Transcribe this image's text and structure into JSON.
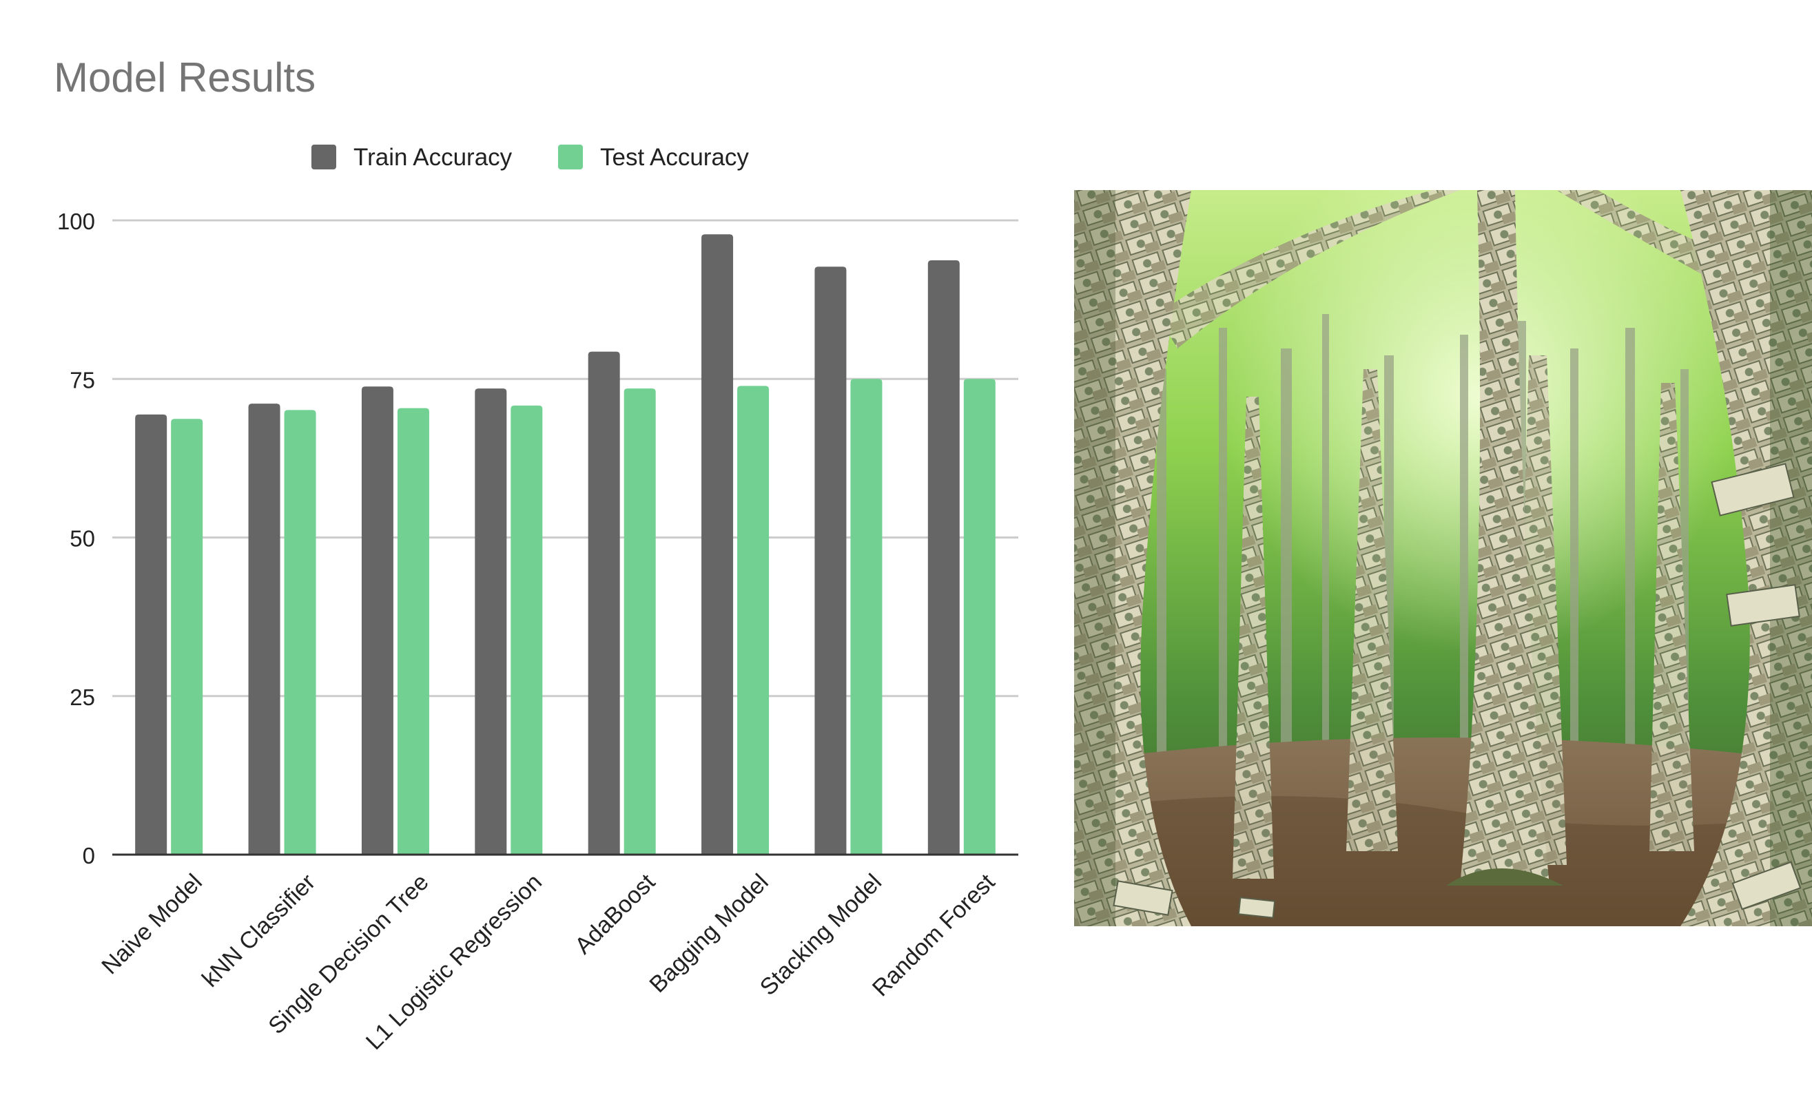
{
  "chart_data": {
    "type": "bar",
    "title": "Model Results",
    "xlabel": "",
    "ylabel": "",
    "ylim": [
      0,
      100
    ],
    "yticks": [
      0,
      25,
      50,
      75,
      100
    ],
    "grid": true,
    "legend_position": "top",
    "categories": [
      "Naive Model",
      "kNN Classifier",
      "Single Decision Tree",
      "L1 Logistic Regression",
      "AdaBoost",
      "Bagging Model",
      "Stacking Model",
      "Random Forest"
    ],
    "series": [
      {
        "name": "Train Accuracy",
        "color": "#666666",
        "values": [
          69.4,
          71.1,
          73.8,
          73.5,
          79.3,
          97.8,
          92.7,
          93.7
        ]
      },
      {
        "name": "Test Accuracy",
        "color": "#71d092",
        "values": [
          68.7,
          70.1,
          70.4,
          70.8,
          73.5,
          73.9,
          75.0,
          75.0
        ]
      }
    ]
  },
  "image": {
    "icon": "money-forest-photo"
  }
}
